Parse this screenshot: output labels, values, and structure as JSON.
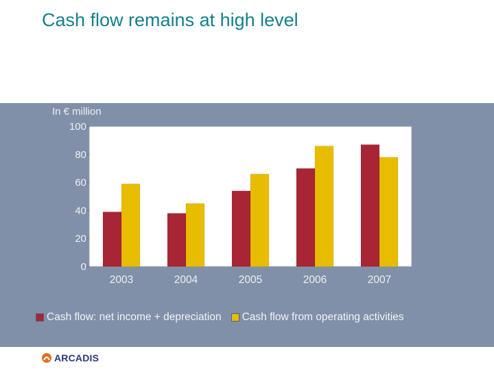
{
  "slide": {
    "title": "Cash flow remains at high level",
    "logo_text": "ARCADIS"
  },
  "colors": {
    "panel": "#8090a8",
    "series_1": "#a82535",
    "series_2": "#e8bc00",
    "title": "#13808a"
  },
  "chart_data": {
    "type": "bar",
    "unit_label": "In € million",
    "categories": [
      "2003",
      "2004",
      "2005",
      "2006",
      "2007"
    ],
    "series": [
      {
        "name": "Cash flow: net income + depreciation",
        "values": [
          39,
          38,
          54,
          70,
          87
        ]
      },
      {
        "name": "Cash flow from operating activities",
        "values": [
          59,
          45,
          66,
          86,
          78
        ]
      }
    ],
    "ylim": [
      0,
      100
    ],
    "yticks": [
      "0",
      "20",
      "40",
      "60",
      "80",
      "100"
    ],
    "legend_position": "bottom",
    "grid": false
  }
}
